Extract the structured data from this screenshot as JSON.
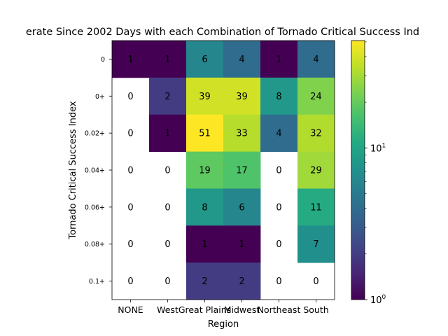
{
  "chart_data": {
    "type": "heatmap",
    "title": "erate Since 2002 Days with each Combination of Tornado Critical Success Ind",
    "xlabel": "Region",
    "ylabel": "Tornado Critical Success Index",
    "x_categories": [
      "NONE",
      "West",
      "Great Plains",
      "Midwest",
      "Northeast",
      "South"
    ],
    "y_categories": [
      "0",
      "0+",
      "0.02+",
      "0.04+",
      "0.06+",
      "0.08+",
      "0.1+"
    ],
    "values": [
      [
        1,
        1,
        6,
        4,
        1,
        4
      ],
      [
        0,
        2,
        39,
        39,
        8,
        24
      ],
      [
        0,
        1,
        51,
        33,
        4,
        32
      ],
      [
        0,
        0,
        19,
        17,
        0,
        29
      ],
      [
        0,
        0,
        8,
        6,
        0,
        11
      ],
      [
        0,
        0,
        1,
        1,
        0,
        7
      ],
      [
        0,
        0,
        2,
        2,
        0,
        0
      ]
    ],
    "color_scale": "log",
    "colormap": "viridis",
    "vmin": 1,
    "vmax": 51,
    "zero_cells_masked": true,
    "colorbar_ticks": [
      {
        "value": 1,
        "base": "10",
        "exp": "0"
      },
      {
        "value": 10,
        "base": "10",
        "exp": "1"
      }
    ]
  }
}
